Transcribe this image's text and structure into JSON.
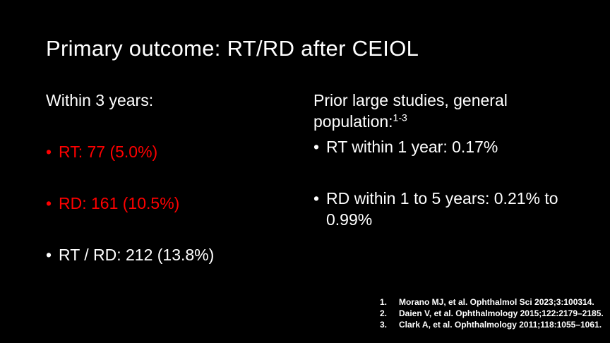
{
  "slide": {
    "title": "Primary outcome: RT/RD after CEIOL",
    "bullet_char": "•",
    "colors": {
      "background": "#000000",
      "text": "#ffffff",
      "accent_red": "#ff0000"
    },
    "left_column": {
      "heading": "Within 3 years:",
      "bullets": [
        {
          "text": "RT: 77 (5.0%)",
          "color": "#ff0000"
        },
        {
          "text": "RD: 161 (10.5%)",
          "color": "#ff0000"
        },
        {
          "text": "RT / RD: 212 (13.8%)",
          "color": "#ffffff"
        }
      ]
    },
    "right_column": {
      "heading": "Prior large studies, general population:",
      "heading_superscript": "1-3",
      "bullets": [
        {
          "text": "RT within 1 year: 0.17%",
          "color": "#ffffff"
        },
        {
          "text": "RD within 1 to 5 years: 0.21% to 0.99%",
          "color": "#ffffff"
        }
      ]
    },
    "references": [
      {
        "number": "1.",
        "text": "Morano MJ, et al. Ophthalmol Sci 2023;3:100314."
      },
      {
        "number": "2.",
        "text": "Daien V, et al. Ophthalmology 2015;122:2179–2185."
      },
      {
        "number": "3.",
        "text": "Clark A, et al. Ophthalmology 2011;118:1055–1061."
      }
    ]
  }
}
